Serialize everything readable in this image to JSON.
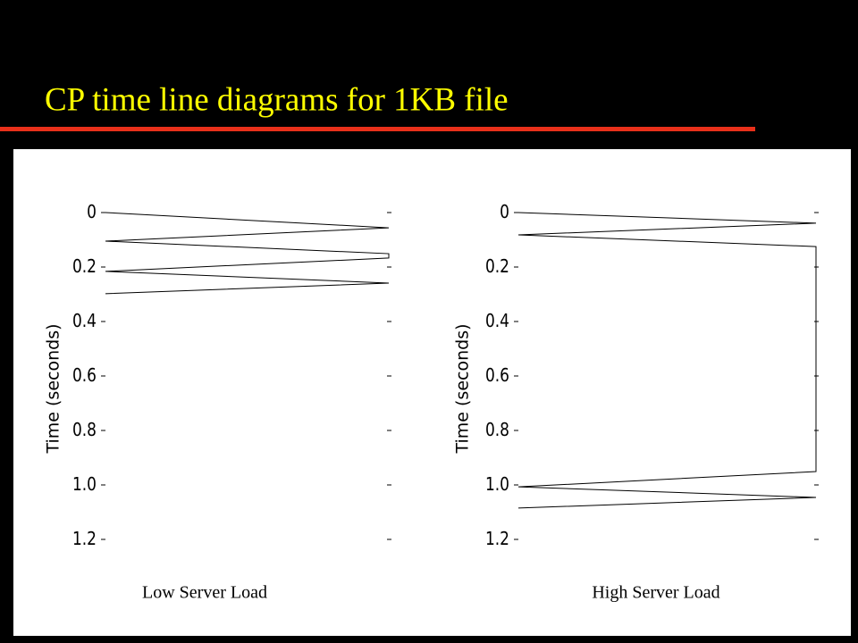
{
  "title": "CP time line diagrams for 1KB file",
  "chart_data": [
    {
      "type": "timeline",
      "x_label": "Low Server Load",
      "y_label": "Time (seconds)",
      "xlim": [
        0,
        1
      ],
      "ylim": [
        1.2,
        0
      ],
      "yticks": [
        0,
        0.2,
        0.4,
        0.6,
        0.8,
        {
          "value": 1,
          "label": "1.0"
        },
        1.2
      ],
      "series": [
        {
          "color": "#000000",
          "x": [
            0,
            1,
            0,
            1,
            1,
            0,
            1,
            0
          ],
          "values": [
            0,
            0.056,
            0.105,
            0.151,
            0.167,
            0.216,
            0.259,
            0.298
          ]
        }
      ]
    },
    {
      "type": "timeline",
      "x_label": "High Server Load",
      "y_label": "Time (seconds)",
      "xlim": [
        0,
        1
      ],
      "ylim": [
        1.2,
        0
      ],
      "yticks": [
        0,
        0.2,
        0.4,
        0.6,
        0.8,
        {
          "value": 1,
          "label": "1.0"
        },
        1.2
      ],
      "series": [
        {
          "color": "#000000",
          "x": [
            0,
            1,
            0,
            1,
            1,
            0,
            1,
            0
          ],
          "values": [
            0,
            0.039,
            0.082,
            0.125,
            0.951,
            1.007,
            1.046,
            1.085
          ]
        }
      ]
    }
  ]
}
